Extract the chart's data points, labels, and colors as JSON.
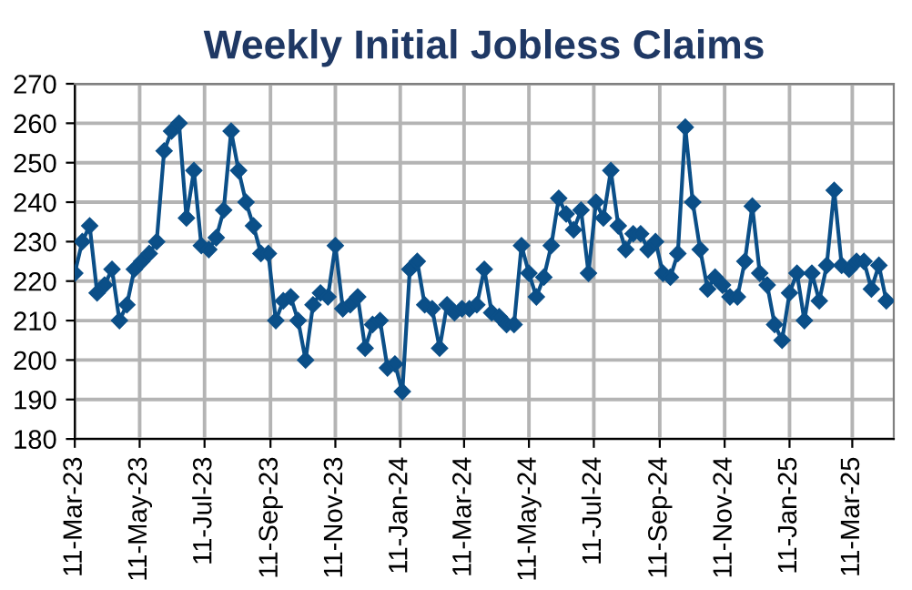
{
  "chart_data": {
    "type": "line",
    "title": "Weekly Initial Jobless Claims",
    "x": [
      "2023-03-11",
      "2023-03-18",
      "2023-03-25",
      "2023-04-01",
      "2023-04-08",
      "2023-04-15",
      "2023-04-22",
      "2023-04-29",
      "2023-05-06",
      "2023-05-13",
      "2023-05-20",
      "2023-05-27",
      "2023-06-03",
      "2023-06-10",
      "2023-06-17",
      "2023-06-24",
      "2023-07-01",
      "2023-07-08",
      "2023-07-15",
      "2023-07-22",
      "2023-07-29",
      "2023-08-05",
      "2023-08-12",
      "2023-08-19",
      "2023-08-26",
      "2023-09-02",
      "2023-09-09",
      "2023-09-16",
      "2023-09-23",
      "2023-09-30",
      "2023-10-07",
      "2023-10-14",
      "2023-10-21",
      "2023-10-28",
      "2023-11-04",
      "2023-11-11",
      "2023-11-18",
      "2023-11-25",
      "2023-12-02",
      "2023-12-09",
      "2023-12-16",
      "2023-12-23",
      "2023-12-30",
      "2024-01-06",
      "2024-01-13",
      "2024-01-20",
      "2024-01-27",
      "2024-02-03",
      "2024-02-10",
      "2024-02-17",
      "2024-02-24",
      "2024-03-02",
      "2024-03-09",
      "2024-03-16",
      "2024-03-23",
      "2024-03-30",
      "2024-04-06",
      "2024-04-13",
      "2024-04-20",
      "2024-04-27",
      "2024-05-04",
      "2024-05-11",
      "2024-05-18",
      "2024-05-25",
      "2024-06-01",
      "2024-06-08",
      "2024-06-15",
      "2024-06-22",
      "2024-06-29",
      "2024-07-06",
      "2024-07-13",
      "2024-07-20",
      "2024-07-27",
      "2024-08-03",
      "2024-08-10",
      "2024-08-17",
      "2024-08-24",
      "2024-08-31",
      "2024-09-07",
      "2024-09-14",
      "2024-09-21",
      "2024-09-28",
      "2024-10-05",
      "2024-10-12",
      "2024-10-19",
      "2024-10-26",
      "2024-11-02",
      "2024-11-09",
      "2024-11-16",
      "2024-11-23",
      "2024-11-30",
      "2024-12-07",
      "2024-12-14",
      "2024-12-21",
      "2024-12-28",
      "2025-01-04",
      "2025-01-11",
      "2025-01-18",
      "2025-01-25",
      "2025-02-01",
      "2025-02-08",
      "2025-02-15",
      "2025-02-22",
      "2025-03-01",
      "2025-03-08",
      "2025-03-15",
      "2025-03-22",
      "2025-03-29",
      "2025-04-05",
      "2025-04-12"
    ],
    "series": [
      {
        "color": "#0b4f88",
        "values": [
          222,
          230,
          234,
          217,
          219,
          223,
          210,
          214,
          223,
          225,
          227,
          230,
          253,
          258,
          260,
          236,
          248,
          229,
          228,
          231,
          238,
          258,
          248,
          240,
          234,
          227,
          227,
          210,
          215,
          216,
          210,
          200,
          214,
          217,
          216,
          229,
          213,
          214,
          216,
          203,
          209,
          210,
          198,
          199,
          192,
          223,
          225,
          214,
          213,
          203,
          214,
          212,
          213,
          213,
          214,
          223,
          212,
          211,
          209,
          209,
          229,
          222,
          216,
          221,
          229,
          241,
          237,
          233,
          238,
          222,
          240,
          236,
          248,
          234,
          228,
          232,
          232,
          228,
          230,
          222,
          221,
          227,
          259,
          240,
          228,
          218,
          221,
          219,
          216,
          216,
          225,
          239,
          222,
          219,
          209,
          205,
          217,
          222,
          210,
          222,
          215,
          224,
          243,
          224,
          223,
          225,
          225,
          218,
          224,
          215
        ]
      }
    ],
    "xlim": [
      "2023-03-11",
      "2025-04-19"
    ],
    "xticks": [
      {
        "value": "2023-03-11",
        "label": "11-Mar-23"
      },
      {
        "value": "2023-05-11",
        "label": "11-May-23"
      },
      {
        "value": "2023-07-11",
        "label": "11-Jul-23"
      },
      {
        "value": "2023-09-11",
        "label": "11-Sep-23"
      },
      {
        "value": "2023-11-11",
        "label": "11-Nov-23"
      },
      {
        "value": "2024-01-11",
        "label": "11-Jan-24"
      },
      {
        "value": "2024-03-11",
        "label": "11-Mar-24"
      },
      {
        "value": "2024-05-11",
        "label": "11-May-24"
      },
      {
        "value": "2024-07-11",
        "label": "11-Jul-24"
      },
      {
        "value": "2024-09-11",
        "label": "11-Sep-24"
      },
      {
        "value": "2024-11-11",
        "label": "11-Nov-24"
      },
      {
        "value": "2025-01-11",
        "label": "11-Jan-25"
      },
      {
        "value": "2025-03-11",
        "label": "11-Mar-25"
      }
    ],
    "ylim": [
      180,
      270
    ],
    "yticks": [
      180,
      190,
      200,
      210,
      220,
      230,
      240,
      250,
      260,
      270
    ],
    "grid": true,
    "marker": "diamond",
    "line_style": "solid"
  }
}
